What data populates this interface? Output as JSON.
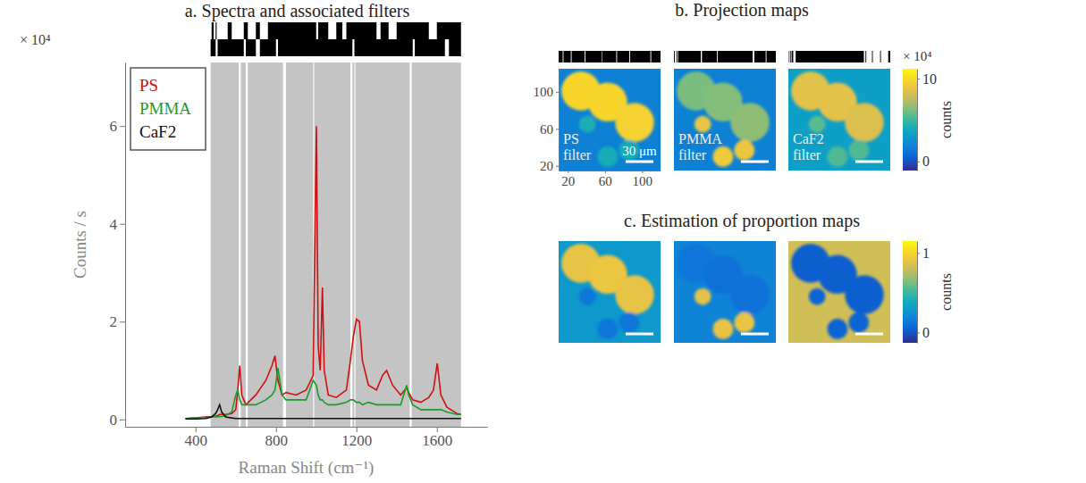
{
  "chart_data": [
    {
      "type": "line",
      "title": "a. Spectra and associated filters",
      "x_label": "Raman Shift (cm⁻¹)",
      "y_label": "Counts / s",
      "y_multiplier": "× 10⁴",
      "xlim": [
        50,
        1850
      ],
      "xticks": [
        400,
        800,
        1200,
        1600
      ],
      "ylim": [
        -0.15,
        7.3
      ],
      "yticks": [
        0,
        2,
        4,
        6
      ],
      "legend": "top-left",
      "x": [
        350,
        400,
        450,
        480,
        500,
        510,
        520,
        530,
        550,
        580,
        600,
        610,
        620,
        630,
        650,
        700,
        750,
        780,
        795,
        810,
        830,
        850,
        900,
        950,
        985,
        1001,
        1010,
        1020,
        1031,
        1040,
        1060,
        1100,
        1150,
        1170,
        1185,
        1200,
        1215,
        1230,
        1260,
        1300,
        1330,
        1350,
        1380,
        1420,
        1450,
        1460,
        1480,
        1520,
        1560,
        1583,
        1602,
        1620,
        1650,
        1700,
        1720
      ],
      "series": [
        {
          "name": "PS",
          "color": "#d01010",
          "values": [
            0.02,
            0.03,
            0.05,
            0.06,
            0.07,
            0.08,
            0.1,
            0.1,
            0.1,
            0.12,
            0.2,
            0.6,
            1.1,
            0.5,
            0.3,
            0.5,
            0.8,
            1.1,
            1.3,
            0.8,
            0.5,
            0.55,
            0.5,
            0.6,
            0.9,
            6.0,
            1.5,
            1.0,
            2.7,
            1.0,
            0.5,
            0.45,
            0.6,
            1.2,
            1.7,
            2.05,
            2.0,
            1.2,
            0.7,
            0.6,
            0.9,
            1.0,
            0.7,
            0.5,
            0.65,
            0.55,
            0.4,
            0.35,
            0.45,
            0.6,
            1.15,
            0.5,
            0.25,
            0.12,
            0.1
          ]
        },
        {
          "name": "PMMA",
          "color": "#1c9a2a",
          "values": [
            0.02,
            0.03,
            0.04,
            0.05,
            0.05,
            0.05,
            0.06,
            0.06,
            0.08,
            0.15,
            0.5,
            0.6,
            0.4,
            0.3,
            0.3,
            0.3,
            0.4,
            0.5,
            0.6,
            1.05,
            0.5,
            0.4,
            0.4,
            0.4,
            0.8,
            0.7,
            0.5,
            0.4,
            0.4,
            0.35,
            0.3,
            0.3,
            0.35,
            0.4,
            0.4,
            0.35,
            0.35,
            0.3,
            0.35,
            0.3,
            0.3,
            0.3,
            0.3,
            0.3,
            0.7,
            0.5,
            0.3,
            0.2,
            0.2,
            0.2,
            0.2,
            0.2,
            0.15,
            0.1,
            0.1
          ]
        },
        {
          "name": "CaF2",
          "color": "#111111",
          "values": [
            0.01,
            0.01,
            0.02,
            0.05,
            0.12,
            0.2,
            0.3,
            0.15,
            0.05,
            0.03,
            0.02,
            0.02,
            0.02,
            0.02,
            0.02,
            0.02,
            0.02,
            0.02,
            0.02,
            0.02,
            0.02,
            0.02,
            0.02,
            0.02,
            0.02,
            0.02,
            0.02,
            0.02,
            0.02,
            0.02,
            0.02,
            0.02,
            0.02,
            0.02,
            0.02,
            0.02,
            0.02,
            0.02,
            0.02,
            0.02,
            0.02,
            0.02,
            0.02,
            0.02,
            0.02,
            0.02,
            0.02,
            0.02,
            0.02,
            0.02,
            0.02,
            0.02,
            0.02,
            0.02,
            0.02
          ]
        }
      ],
      "bands": [
        [
          475,
          615
        ],
        [
          625,
          650
        ],
        [
          660,
          835
        ],
        [
          850,
          985
        ],
        [
          990,
          1170
        ],
        [
          1180,
          1190
        ],
        [
          1195,
          1465
        ],
        [
          1475,
          1720
        ]
      ],
      "barcode": [
        [
          [
            480,
            490
          ],
          [
            500,
            505
          ],
          [
            560,
            580
          ],
          [
            640,
            660
          ],
          [
            700,
            720
          ],
          [
            760,
            1000
          ],
          [
            1010,
            1060
          ],
          [
            1100,
            1130
          ],
          [
            1150,
            1300
          ],
          [
            1320,
            1360
          ],
          [
            1400,
            1560
          ],
          [
            1600,
            1720
          ]
        ],
        [
          [
            475,
            500
          ],
          [
            510,
            640
          ],
          [
            650,
            700
          ],
          [
            720,
            800
          ],
          [
            810,
            1180
          ],
          [
            1190,
            1480
          ],
          [
            1490,
            1640
          ],
          [
            1660,
            1720
          ]
        ]
      ]
    },
    {
      "type": "heatmap",
      "title": "b. Projection maps",
      "xlim": [
        10,
        120
      ],
      "ylim": [
        15,
        125
      ],
      "xticks": [
        20,
        60,
        100
      ],
      "yticks": [
        20,
        60,
        100
      ],
      "barcode_xlim": [
        470,
        1725
      ],
      "scale_bar": {
        "length": 30,
        "label": "30 μm"
      },
      "colorbar": {
        "range": [
          -1.1,
          11.2
        ],
        "ticks": [
          0,
          10
        ],
        "label": "counts",
        "multiplier": "× 10⁴"
      },
      "particles": [
        {
          "cx": 34,
          "cy": 101,
          "r": 21
        },
        {
          "cx": 63,
          "cy": 89,
          "r": 21
        },
        {
          "cx": 92,
          "cy": 67,
          "r": 21
        },
        {
          "cx": 41,
          "cy": 65,
          "r": 9
        },
        {
          "cx": 63,
          "cy": 30,
          "r": 11
        },
        {
          "cx": 86,
          "cy": 37,
          "r": 11
        }
      ],
      "maps": [
        {
          "label": "PS filter",
          "background": 1.8,
          "particle_values": [
            9.8,
            9.8,
            9.6,
            4.2,
            4.0,
            4.0
          ],
          "barcode": [
            [
              470,
              520
            ],
            [
              530,
              620
            ],
            [
              630,
              790
            ],
            [
              800,
              1000
            ],
            [
              1005,
              1180
            ],
            [
              1190,
              1340
            ],
            [
              1350,
              1600
            ],
            [
              1610,
              1725
            ]
          ]
        },
        {
          "label": "PMMA filter",
          "background": 1.8,
          "particle_values": [
            6.2,
            6.4,
            6.6,
            8.8,
            9.2,
            9.0
          ],
          "barcode": [
            [
              470,
              480
            ],
            [
              500,
              510
            ],
            [
              520,
              800
            ],
            [
              815,
              1000
            ],
            [
              1010,
              1440
            ],
            [
              1460,
              1600
            ],
            [
              1610,
              1725
            ]
          ]
        },
        {
          "label": "CaF2 filter",
          "background": 3.2,
          "particle_values": [
            8.6,
            8.6,
            8.4,
            5.6,
            5.4,
            5.4
          ],
          "barcode": [
            [
              470,
              475
            ],
            [
              490,
              500
            ],
            [
              510,
              530
            ],
            [
              560,
              1400
            ],
            [
              1420,
              1430
            ],
            [
              1500,
              1510
            ],
            [
              1600,
              1610
            ],
            [
              1700,
              1725
            ]
          ]
        }
      ]
    },
    {
      "type": "heatmap",
      "title": "c. Estimation of proportion maps",
      "xlim": [
        10,
        120
      ],
      "ylim": [
        15,
        125
      ],
      "tick_labels": false,
      "scale_bar": {
        "length": 30
      },
      "colorbar": {
        "range": [
          -0.13,
          1.15
        ],
        "ticks": [
          0,
          1
        ],
        "label": "counts"
      },
      "particles": [
        {
          "cx": 34,
          "cy": 101,
          "r": 21
        },
        {
          "cx": 63,
          "cy": 89,
          "r": 21
        },
        {
          "cx": 92,
          "cy": 67,
          "r": 21
        },
        {
          "cx": 41,
          "cy": 65,
          "r": 9
        },
        {
          "cx": 63,
          "cy": 30,
          "r": 11
        },
        {
          "cx": 86,
          "cy": 37,
          "r": 11
        }
      ],
      "maps": [
        {
          "background": 0.28,
          "particle_values": [
            0.9,
            0.92,
            0.9,
            0.12,
            0.12,
            0.12
          ]
        },
        {
          "background": 0.18,
          "particle_values": [
            0.12,
            0.1,
            0.1,
            0.88,
            0.9,
            0.9
          ]
        },
        {
          "background": 0.82,
          "particle_values": [
            0.03,
            0.03,
            0.03,
            0.05,
            0.05,
            0.05
          ]
        }
      ]
    }
  ]
}
